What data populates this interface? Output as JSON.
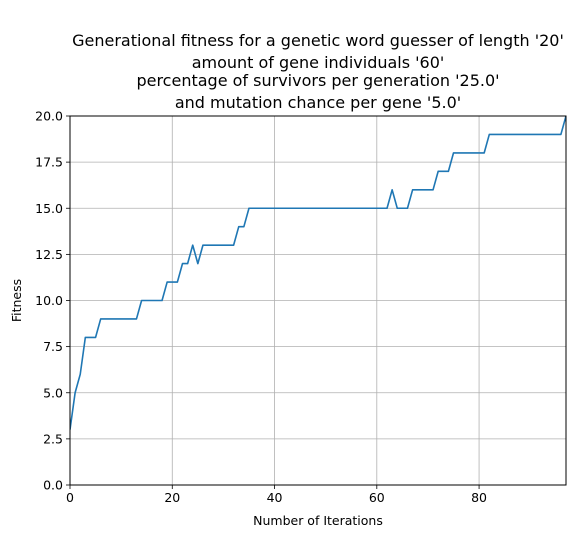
{
  "chart_data": {
    "type": "line",
    "title_lines": [
      "Generational fitness for a genetic word guesser of length '20'",
      "amount of gene individuals '60'",
      "percentage of survivors per generation '25.0'",
      "and mutation chance per gene '5.0'"
    ],
    "xlabel": "Number of Iterations",
    "ylabel": "Fitness",
    "xlim": [
      0,
      97
    ],
    "ylim": [
      0,
      20
    ],
    "xticks": [
      0,
      20,
      40,
      60,
      80
    ],
    "xtick_labels": [
      "0",
      "20",
      "40",
      "60",
      "80"
    ],
    "yticks": [
      0,
      2.5,
      5,
      7.5,
      10,
      12.5,
      15,
      17.5,
      20
    ],
    "ytick_labels": [
      "0.0",
      "2.5",
      "5.0",
      "7.5",
      "10.0",
      "12.5",
      "15.0",
      "17.5",
      "20.0"
    ],
    "grid": true,
    "line_color": "#1f77b4",
    "series": [
      {
        "x": [
          0,
          1,
          2,
          3,
          4,
          5,
          6,
          7,
          8,
          9,
          10,
          11,
          12,
          13,
          14,
          15,
          16,
          17,
          18,
          19,
          20,
          21,
          22,
          23,
          24,
          25,
          26,
          27,
          28,
          29,
          30,
          31,
          32,
          33,
          34,
          35,
          36,
          37,
          38,
          39,
          40,
          41,
          42,
          43,
          44,
          45,
          46,
          47,
          48,
          49,
          50,
          51,
          52,
          53,
          54,
          55,
          56,
          57,
          58,
          59,
          60,
          61,
          62,
          63,
          64,
          65,
          66,
          67,
          68,
          69,
          70,
          71,
          72,
          73,
          74,
          75,
          76,
          77,
          78,
          79,
          80,
          81,
          82,
          83,
          84,
          85,
          86,
          87,
          88,
          89,
          90,
          91,
          92,
          93,
          94,
          95,
          96,
          97
        ],
        "values": [
          3,
          5,
          6,
          8,
          8,
          8,
          9,
          9,
          9,
          9,
          9,
          9,
          9,
          9,
          10,
          10,
          10,
          10,
          10,
          11,
          11,
          11,
          12,
          12,
          13,
          12,
          13,
          13,
          13,
          13,
          13,
          13,
          13,
          14,
          14,
          15,
          15,
          15,
          15,
          15,
          15,
          15,
          15,
          15,
          15,
          15,
          15,
          15,
          15,
          15,
          15,
          15,
          15,
          15,
          15,
          15,
          15,
          15,
          15,
          15,
          15,
          15,
          15,
          16,
          15,
          15,
          15,
          16,
          16,
          16,
          16,
          16,
          17,
          17,
          17,
          18,
          18,
          18,
          18,
          18,
          18,
          18,
          19,
          19,
          19,
          19,
          19,
          19,
          19,
          19,
          19,
          19,
          19,
          19,
          19,
          19,
          19,
          20
        ]
      }
    ]
  }
}
